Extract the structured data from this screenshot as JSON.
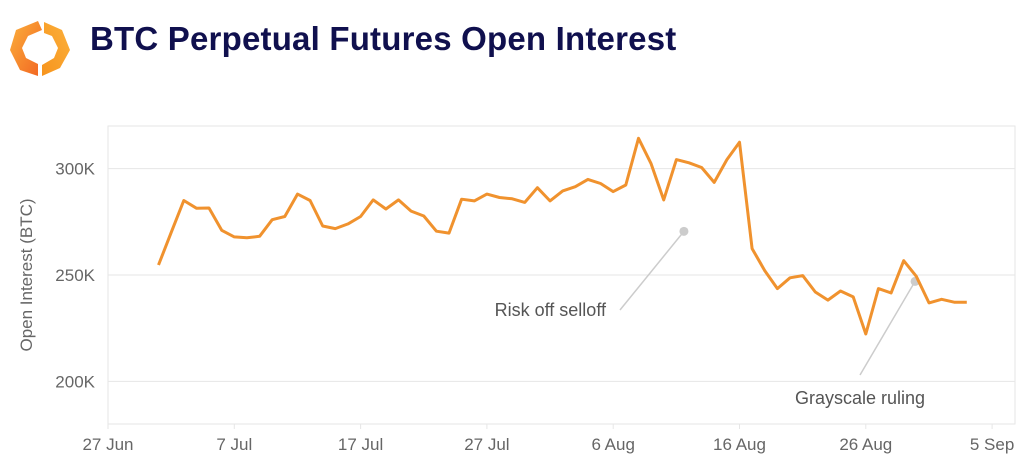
{
  "header": {
    "title": "BTC Perpetual Futures Open Interest",
    "logo": "hexagon-chevron-logo"
  },
  "colors": {
    "line": "#f0922e",
    "title": "#10104e",
    "grid": "#e6e6e6",
    "annotation": "#cccccc"
  },
  "chart_data": {
    "type": "line",
    "title": "BTC Perpetual Futures Open Interest",
    "xlabel": "",
    "ylabel": "Open Interest (BTC)",
    "ylim": [
      180,
      320
    ],
    "yticks": [
      200,
      250,
      300
    ],
    "ytick_labels": [
      "200K",
      "250K",
      "300K"
    ],
    "xtick_labels": [
      "27 Jun",
      "7 Jul",
      "17 Jul",
      "27 Jul",
      "6 Aug",
      "16 Aug",
      "26 Aug",
      "5 Sep"
    ],
    "xtick_days": [
      0,
      10,
      20,
      30,
      40,
      50,
      60,
      70
    ],
    "x_start": "2019-06-27",
    "grid": true,
    "series": [
      {
        "name": "Open Interest",
        "unit": "K BTC",
        "x_dates_from": "1 Jul",
        "first_day": 4,
        "values": [
          254.7,
          270,
          285,
          281.4,
          281.5,
          271,
          267.9,
          267.5,
          268.2,
          276,
          277.5,
          288,
          285,
          273,
          271.8,
          274,
          277.5,
          285.3,
          281,
          285.3,
          280,
          277.7,
          270.6,
          269.7,
          285.6,
          284.8,
          288,
          286.4,
          285.8,
          284.1,
          291,
          284.8,
          289.5,
          291.5,
          294.9,
          293,
          289.2,
          292.3,
          314.2,
          302.3,
          285.3,
          304.2,
          302.7,
          300.5,
          293.5,
          304.2,
          312.4,
          262.4,
          252,
          243.6,
          248.7,
          249.7,
          242,
          238.2,
          242.5,
          239.7,
          222.3,
          243.6,
          241.6,
          256.7,
          249.4,
          236.9,
          238.6,
          237.2,
          237.2
        ]
      }
    ],
    "annotations": [
      {
        "text": "Risk off selloff",
        "day": 45.6,
        "value": 270.5
      },
      {
        "text": "Grayscale ruling",
        "day": 63.9,
        "value": 247
      }
    ]
  }
}
